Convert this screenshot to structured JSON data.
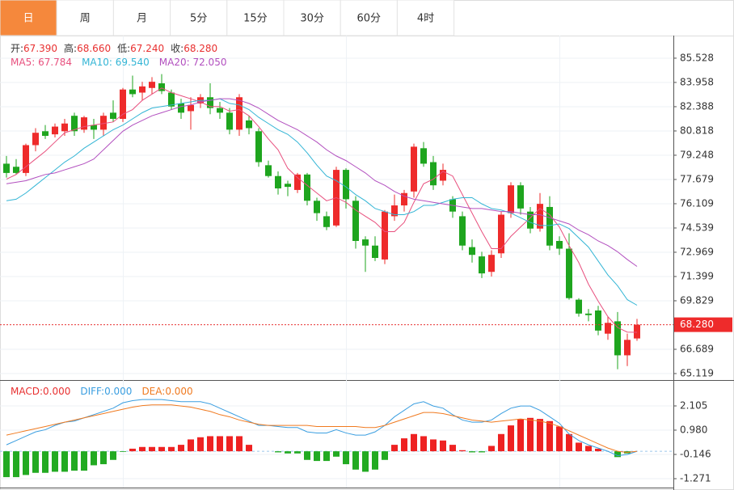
{
  "tabs": [
    "日",
    "周",
    "月",
    "5分",
    "15分",
    "30分",
    "60分",
    "4时"
  ],
  "selected_tab": 0,
  "info": [
    {
      "label": "开:",
      "value": "67.390"
    },
    {
      "label": "高:",
      "value": "68.660"
    },
    {
      "label": "低:",
      "value": "67.240"
    },
    {
      "label": "收:",
      "value": "68.280"
    }
  ],
  "ma_legend": [
    {
      "label": "MA5: ",
      "value": "67.784",
      "color": "#e8507e"
    },
    {
      "label": "MA10: ",
      "value": "69.540",
      "color": "#33b5d5"
    },
    {
      "label": "MA20: ",
      "value": "72.050",
      "color": "#b24fbf"
    }
  ],
  "macd_legend": [
    {
      "label": "MACD:",
      "value": "0.000",
      "color": "#e83030"
    },
    {
      "label": "DIFF:",
      "value": "0.000",
      "color": "#3a9ee0"
    },
    {
      "label": "DEA:",
      "value": "0.000",
      "color": "#f07a20"
    }
  ],
  "chart_data": [
    {
      "type": "candlestick",
      "up_color": "#ee2b2b",
      "down_color": "#1ea51e",
      "open": [
        78.7,
        78.5,
        78.1,
        79.9,
        80.8,
        80.6,
        80.8,
        81.8,
        80.9,
        81.2,
        80.9,
        82.0,
        81.6,
        83.5,
        83.3,
        83.6,
        83.9,
        83.3,
        82.6,
        82.1,
        82.6,
        83.0,
        82.3,
        82.0,
        80.9,
        81.5,
        80.8,
        78.6,
        77.9,
        77.4,
        77.0,
        78.0,
        76.3,
        75.3,
        74.7,
        78.3,
        76.3,
        73.8,
        73.4,
        72.5,
        75.3,
        76.0,
        76.9,
        79.7,
        78.8,
        77.6,
        76.4,
        75.3,
        73.3,
        72.7,
        71.7,
        72.9,
        75.5,
        77.3,
        75.6,
        74.5,
        75.9,
        73.7,
        73.2,
        69.9,
        69.0,
        69.2,
        67.7,
        68.5,
        66.3,
        67.39
      ],
      "high": [
        79.2,
        79.0,
        80.0,
        81.0,
        81.2,
        81.3,
        81.6,
        82.0,
        81.8,
        81.6,
        82.0,
        82.8,
        83.6,
        84.4,
        84.0,
        84.3,
        84.5,
        83.5,
        82.9,
        83.0,
        83.2,
        83.9,
        82.7,
        82.3,
        83.2,
        81.8,
        81.0,
        78.9,
        78.2,
        77.6,
        78.1,
        78.1,
        76.5,
        75.6,
        78.5,
        78.4,
        76.6,
        74.0,
        74.0,
        75.7,
        76.7,
        77.0,
        80.0,
        80.1,
        79.2,
        78.7,
        76.6,
        75.6,
        73.8,
        73.0,
        73.1,
        75.6,
        77.5,
        77.5,
        75.9,
        76.8,
        76.6,
        74.0,
        74.2,
        70.0,
        69.3,
        69.5,
        68.8,
        69.1,
        67.7,
        68.66
      ],
      "low": [
        77.8,
        78.0,
        77.9,
        79.5,
        80.3,
        80.4,
        80.5,
        80.5,
        80.7,
        80.3,
        80.5,
        81.4,
        81.4,
        83.0,
        82.8,
        83.2,
        83.2,
        82.2,
        81.6,
        80.9,
        82.3,
        81.9,
        81.6,
        80.6,
        80.5,
        80.6,
        78.5,
        77.8,
        76.7,
        76.6,
        76.8,
        76.0,
        75.0,
        74.4,
        74.6,
        75.8,
        73.2,
        71.7,
        72.4,
        72.2,
        75.0,
        75.6,
        76.5,
        78.5,
        77.0,
        77.3,
        75.2,
        73.1,
        72.3,
        71.3,
        71.4,
        72.6,
        75.2,
        75.4,
        74.2,
        74.3,
        73.1,
        72.8,
        69.9,
        68.8,
        68.5,
        67.6,
        67.3,
        65.4,
        65.6,
        67.24
      ],
      "close": [
        78.1,
        78.1,
        79.9,
        80.7,
        80.5,
        81.1,
        81.3,
        80.8,
        81.7,
        80.9,
        81.8,
        81.6,
        83.5,
        83.2,
        83.7,
        84.0,
        83.4,
        82.4,
        82.0,
        82.5,
        83.0,
        82.3,
        82.0,
        80.9,
        83.0,
        81.0,
        78.8,
        77.9,
        77.1,
        77.2,
        78.0,
        76.3,
        75.5,
        74.6,
        78.3,
        76.4,
        73.7,
        73.4,
        72.6,
        75.6,
        76.0,
        76.8,
        79.8,
        78.7,
        77.3,
        78.3,
        75.6,
        73.4,
        72.8,
        71.6,
        72.8,
        75.4,
        77.3,
        75.8,
        74.5,
        76.1,
        73.4,
        73.2,
        70.0,
        69.0,
        68.9,
        67.9,
        68.4,
        66.3,
        67.3,
        68.28
      ],
      "ma": [
        {
          "color": "#e8507e",
          "values": [
            77.7,
            78.0,
            78.5,
            79.0,
            79.5,
            80.1,
            80.7,
            80.9,
            81.1,
            81.2,
            81.3,
            81.4,
            81.9,
            82.2,
            82.8,
            83.2,
            83.6,
            83.3,
            83.1,
            82.9,
            82.7,
            82.4,
            82.4,
            82.1,
            82.2,
            81.8,
            81.1,
            80.3,
            79.6,
            78.4,
            77.8,
            77.3,
            76.8,
            76.3,
            76.5,
            76.2,
            75.7,
            75.3,
            74.9,
            74.3,
            74.3,
            74.9,
            76.2,
            77.4,
            77.7,
            78.2,
            77.9,
            76.7,
            75.5,
            74.3,
            73.2,
            73.2,
            74.0,
            74.6,
            75.2,
            75.8,
            75.4,
            74.6,
            73.4,
            72.3,
            70.9,
            69.8,
            68.8,
            68.1,
            67.8,
            67.784
          ]
        },
        {
          "color": "#33b5d5",
          "values": [
            76.3,
            76.4,
            76.8,
            77.3,
            77.8,
            78.3,
            78.8,
            79.2,
            79.7,
            80.1,
            80.5,
            80.9,
            81.2,
            81.6,
            82.0,
            82.3,
            82.4,
            82.5,
            82.6,
            82.7,
            82.8,
            82.8,
            82.9,
            82.6,
            82.5,
            82.2,
            81.7,
            81.3,
            80.9,
            80.6,
            80.1,
            79.4,
            78.6,
            77.9,
            77.6,
            77.2,
            76.7,
            76.3,
            75.8,
            75.6,
            75.4,
            75.4,
            75.6,
            76.0,
            76.0,
            76.2,
            76.4,
            76.5,
            76.5,
            76.1,
            75.8,
            75.7,
            75.5,
            75.2,
            74.9,
            74.7,
            74.7,
            74.8,
            74.5,
            73.9,
            73.3,
            72.4,
            71.5,
            70.8,
            69.9,
            69.54
          ]
        },
        {
          "color": "#b24fbf",
          "values": [
            77.4,
            77.5,
            77.6,
            77.8,
            78.0,
            78.1,
            78.3,
            78.5,
            78.7,
            79.0,
            79.6,
            80.2,
            80.8,
            81.2,
            81.5,
            81.8,
            82.0,
            82.2,
            82.4,
            82.5,
            82.7,
            82.8,
            82.9,
            82.9,
            82.8,
            82.6,
            82.3,
            81.9,
            81.5,
            81.2,
            80.9,
            80.5,
            80.1,
            79.6,
            79.2,
            78.9,
            78.5,
            78.1,
            77.6,
            77.3,
            76.9,
            76.6,
            76.4,
            76.3,
            76.2,
            76.1,
            76.0,
            75.9,
            75.8,
            75.8,
            75.7,
            75.6,
            75.6,
            75.5,
            75.4,
            75.4,
            75.2,
            75.0,
            74.8,
            74.4,
            74.1,
            73.7,
            73.4,
            73.0,
            72.5,
            72.05
          ]
        }
      ],
      "ylim": [
        64.7,
        86.99
      ],
      "yticks": [
        85.528,
        83.958,
        82.388,
        80.818,
        79.248,
        77.679,
        76.109,
        74.539,
        72.969,
        71.399,
        69.829,
        66.689,
        65.119
      ],
      "last_price": {
        "value": 68.28,
        "label": "68.280"
      },
      "grid": true
    },
    {
      "type": "macd",
      "histogram": [
        -1.2,
        -1.2,
        -1.1,
        -1.0,
        -1.0,
        -0.95,
        -0.95,
        -0.9,
        -0.9,
        -0.65,
        -0.6,
        -0.4,
        -0.03,
        0.12,
        0.2,
        0.2,
        0.2,
        0.2,
        0.3,
        0.55,
        0.65,
        0.7,
        0.7,
        0.7,
        0.7,
        0.3,
        0.0,
        0.0,
        -0.05,
        -0.1,
        -0.1,
        -0.4,
        -0.45,
        -0.45,
        -0.25,
        -0.6,
        -0.85,
        -0.95,
        -0.85,
        -0.4,
        0.3,
        0.6,
        0.8,
        0.7,
        0.55,
        0.5,
        0.3,
        0.05,
        -0.05,
        -0.05,
        0.25,
        0.8,
        1.2,
        1.5,
        1.55,
        1.5,
        1.4,
        1.15,
        0.8,
        0.4,
        0.25,
        0.12,
        0.0,
        -0.27,
        -0.1,
        0.0
      ],
      "up_color": "#ee2222",
      "down_color": "#22aa22",
      "diff": {
        "color": "#3a9ee0",
        "values": [
          0.3,
          0.5,
          0.7,
          0.9,
          1.0,
          1.2,
          1.35,
          1.4,
          1.55,
          1.7,
          1.85,
          2.0,
          2.25,
          2.35,
          2.4,
          2.4,
          2.4,
          2.35,
          2.3,
          2.3,
          2.3,
          2.2,
          2.0,
          1.8,
          1.6,
          1.4,
          1.2,
          1.2,
          1.15,
          1.1,
          1.1,
          0.9,
          0.85,
          0.85,
          1.0,
          0.85,
          0.75,
          0.75,
          0.9,
          1.2,
          1.6,
          1.9,
          2.2,
          2.3,
          2.1,
          2.0,
          1.7,
          1.45,
          1.35,
          1.35,
          1.45,
          1.75,
          2.0,
          2.1,
          2.1,
          1.9,
          1.6,
          1.3,
          0.8,
          0.5,
          0.3,
          0.15,
          0.0,
          -0.2,
          -0.15,
          0.0
        ]
      },
      "dea": {
        "color": "#f07a20",
        "values": [
          0.75,
          0.85,
          0.95,
          1.05,
          1.15,
          1.25,
          1.35,
          1.45,
          1.55,
          1.65,
          1.75,
          1.85,
          1.95,
          2.05,
          2.12,
          2.15,
          2.15,
          2.15,
          2.1,
          2.05,
          1.95,
          1.85,
          1.7,
          1.6,
          1.45,
          1.35,
          1.25,
          1.2,
          1.2,
          1.2,
          1.2,
          1.2,
          1.15,
          1.15,
          1.15,
          1.15,
          1.15,
          1.1,
          1.1,
          1.2,
          1.35,
          1.5,
          1.65,
          1.8,
          1.8,
          1.75,
          1.65,
          1.55,
          1.45,
          1.4,
          1.35,
          1.4,
          1.45,
          1.5,
          1.45,
          1.4,
          1.3,
          1.15,
          0.95,
          0.75,
          0.55,
          0.35,
          0.15,
          0.0,
          -0.05,
          0.0
        ]
      },
      "ylim": [
        -1.684,
        3.155
      ],
      "yticks": [
        2.105,
        {
          "value": 0.98,
          "label": "0.980"
        },
        -0.146,
        -1.271
      ]
    }
  ]
}
